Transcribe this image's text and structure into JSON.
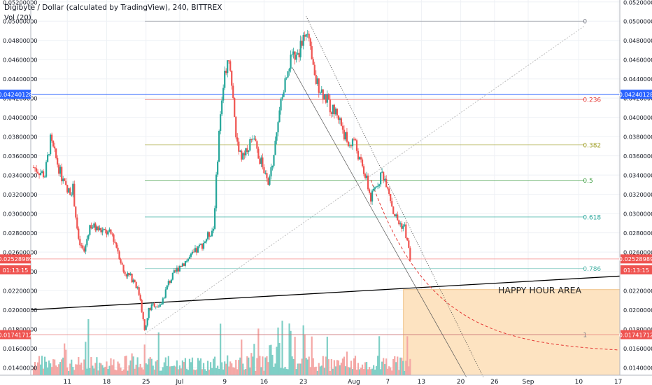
{
  "header": {
    "title": "Digibyte / Dollar (calculated by TradingView), 240, BITTREX",
    "vol": "Vol (20)"
  },
  "colors": {
    "up": "#26a69a",
    "down": "#ef5350",
    "vol_up": "#7fcfc6",
    "vol_down": "#f4a7a5",
    "grid": "#eef1f5",
    "happy_zone": "#fde3c1",
    "trend": "#000000",
    "blue_line": "#2962ff",
    "red_line": "#e53935"
  },
  "chart_data": {
    "type": "candlestick",
    "title": "Digibyte / Dollar (calculated by TradingView), 240, BITTREX",
    "ylim": [
      0.0132,
      0.0522
    ],
    "yticks": [
      "0.01400000",
      "0.01600000",
      "0.01800000",
      "0.02000000",
      "0.02200000",
      "0.02400000",
      "0.02600000",
      "0.02800000",
      "0.03000000",
      "0.03200000",
      "0.03400000",
      "0.03600000",
      "0.03800000",
      "0.04000000",
      "0.04200000",
      "0.04400000",
      "0.04600000",
      "0.04800000",
      "0.05000000",
      "0.05200000"
    ],
    "xticks": [
      {
        "label": "11",
        "day": 11
      },
      {
        "label": "18",
        "day": 18
      },
      {
        "label": "25",
        "day": 25
      },
      {
        "label": "Jul",
        "day": 31
      },
      {
        "label": "9",
        "day": 39
      },
      {
        "label": "16",
        "day": 46
      },
      {
        "label": "23",
        "day": 53
      },
      {
        "label": "Aug",
        "day": 62
      },
      {
        "label": "7",
        "day": 68
      },
      {
        "label": "13",
        "day": 74
      },
      {
        "label": "20",
        "day": 81
      },
      {
        "label": "26",
        "day": 87
      },
      {
        "label": "Sep",
        "day": 93
      },
      {
        "label": "10",
        "day": 102
      },
      {
        "label": "17",
        "day": 109
      }
    ],
    "xlim_days": [
      4.5,
      109.3
    ],
    "price_path": [
      [
        5,
        0.0348
      ],
      [
        7,
        0.034
      ],
      [
        8,
        0.0376
      ],
      [
        10,
        0.0338
      ],
      [
        11,
        0.0322
      ],
      [
        12,
        0.0326
      ],
      [
        13,
        0.027
      ],
      [
        14,
        0.026
      ],
      [
        15,
        0.0288
      ],
      [
        17,
        0.0282
      ],
      [
        19,
        0.0278
      ],
      [
        20,
        0.0262
      ],
      [
        21,
        0.024
      ],
      [
        23,
        0.023
      ],
      [
        24,
        0.0212
      ],
      [
        24.8,
        0.0175
      ],
      [
        25.5,
        0.02
      ],
      [
        26.5,
        0.0206
      ],
      [
        27.5,
        0.0203
      ],
      [
        29,
        0.0228
      ],
      [
        31,
        0.0246
      ],
      [
        33,
        0.0255
      ],
      [
        35,
        0.0268
      ],
      [
        37,
        0.0285
      ],
      [
        38,
        0.0385
      ],
      [
        39,
        0.045
      ],
      [
        40,
        0.0455
      ],
      [
        41,
        0.038
      ],
      [
        42,
        0.036
      ],
      [
        44,
        0.0378
      ],
      [
        46,
        0.0345
      ],
      [
        46.8,
        0.0326
      ],
      [
        48,
        0.0375
      ],
      [
        49,
        0.0415
      ],
      [
        50,
        0.0445
      ],
      [
        51,
        0.047
      ],
      [
        52,
        0.046
      ],
      [
        53,
        0.049
      ],
      [
        54,
        0.0475
      ],
      [
        55,
        0.044
      ],
      [
        57,
        0.042
      ],
      [
        58,
        0.0408
      ],
      [
        59,
        0.0405
      ],
      [
        60,
        0.0388
      ],
      [
        61,
        0.037
      ],
      [
        62,
        0.0378
      ],
      [
        63,
        0.0355
      ],
      [
        64,
        0.034
      ],
      [
        65,
        0.0315
      ],
      [
        66,
        0.033
      ],
      [
        67,
        0.0342
      ],
      [
        68,
        0.033
      ],
      [
        69,
        0.0302
      ],
      [
        70,
        0.029
      ],
      [
        71,
        0.0286
      ],
      [
        72,
        0.0253
      ]
    ],
    "volumes_seed": 7,
    "fib_levels": [
      {
        "label": "0",
        "price": 0.05,
        "color": "#787b86"
      },
      {
        "label": "0.236",
        "price": 0.04185,
        "color": "#e53935"
      },
      {
        "label": "0.382",
        "price": 0.03715,
        "color": "#9e9d24"
      },
      {
        "label": "0.5",
        "price": 0.03345,
        "color": "#43a047"
      },
      {
        "label": "0.618",
        "price": 0.02965,
        "color": "#26a69a"
      },
      {
        "label": "0.786",
        "price": 0.02428,
        "color": "#4bb3a6"
      },
      {
        "label": "1",
        "price": 0.01741712,
        "color": "#787b86"
      }
    ],
    "fib_x_days": [
      24.8,
      103
    ],
    "annotations": {
      "happy_hour": "HAPPY HOUR AREA",
      "happy_zone": {
        "day_start": 70.8,
        "day_end": 109.3,
        "price_top": 0.0221,
        "price_bottom": 0.0132
      },
      "blue_line_price": 0.04240128,
      "current_price_line": 0.02528989,
      "low_line": 0.01741712
    },
    "price_labels": [
      {
        "text": "0.04240128",
        "price": 0.04240128,
        "color": "#2962ff"
      },
      {
        "text": "0.02528989",
        "price": 0.02528989,
        "color": "#ef5350"
      },
      {
        "text": "01:13:15",
        "price": 0.02415,
        "color": "#ef5350"
      },
      {
        "text": "0.01741712",
        "price": 0.01741712,
        "color": "#ef5350"
      }
    ]
  }
}
